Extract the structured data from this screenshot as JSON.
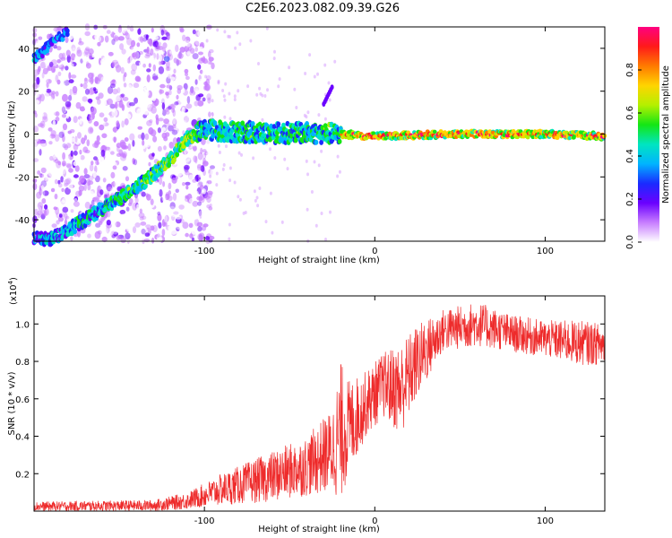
{
  "title": "C2E6.2023.082.09.39.G26",
  "chart_data": [
    {
      "type": "heatmap",
      "xlabel": "Height of straight line (km)",
      "ylabel": "Frequency (Hz)",
      "xlim": [
        -200,
        135
      ],
      "ylim": [
        -50,
        50
      ],
      "xticks": [
        -100,
        0,
        100
      ],
      "yticks": [
        -40,
        -20,
        0,
        20,
        40
      ],
      "colorbar": {
        "label": "Normalized spectral amplitude",
        "range": [
          0,
          1
        ],
        "ticks": [
          0.0,
          0.2,
          0.4,
          0.6,
          0.8
        ],
        "colors": [
          "#ffffff",
          "#c77dff",
          "#6a00ff",
          "#1a2bff",
          "#00b4ff",
          "#00e5c0",
          "#14e614",
          "#b4f000",
          "#ffd400",
          "#ff7a00",
          "#ff1a1a",
          "#ff0080"
        ]
      },
      "ridge": [
        {
          "x": -190,
          "y": -49
        },
        {
          "x": -170,
          "y": -40
        },
        {
          "x": -150,
          "y": -30
        },
        {
          "x": -135,
          "y": -22
        },
        {
          "x": -120,
          "y": -12
        },
        {
          "x": -110,
          "y": -2
        },
        {
          "x": -100,
          "y": 2
        },
        {
          "x": -80,
          "y": 1
        },
        {
          "x": -60,
          "y": 0.5
        },
        {
          "x": -40,
          "y": 0.5
        },
        {
          "x": -20,
          "y": 0
        },
        {
          "x": 0,
          "y": -1
        },
        {
          "x": 50,
          "y": 0
        },
        {
          "x": 100,
          "y": 0
        },
        {
          "x": 135,
          "y": -1
        }
      ],
      "upper_branch": [
        {
          "x": -200,
          "y": 35
        },
        {
          "x": -190,
          "y": 42
        },
        {
          "x": -180,
          "y": 48
        }
      ],
      "anomaly": [
        {
          "x": -30,
          "y": 14
        },
        {
          "x": -25,
          "y": 22
        }
      ]
    },
    {
      "type": "line",
      "xlabel": "Height of straight line (km)",
      "ylabel": "SNR (10 * v/v)",
      "y_scale_label": "(x10",
      "y_scale_exp": "4",
      "xlim": [
        -200,
        135
      ],
      "ylim": [
        0,
        1.15
      ],
      "xticks": [
        -100,
        0,
        100
      ],
      "yticks": [
        0.2,
        0.4,
        0.6,
        0.8,
        1.0
      ],
      "color": "#ee2b2b",
      "envelope": [
        {
          "x": -200,
          "low": 0.0,
          "high": 0.05
        },
        {
          "x": -130,
          "low": 0.0,
          "high": 0.06
        },
        {
          "x": -110,
          "low": 0.01,
          "high": 0.1
        },
        {
          "x": -90,
          "low": 0.03,
          "high": 0.2
        },
        {
          "x": -60,
          "low": 0.05,
          "high": 0.32
        },
        {
          "x": -40,
          "low": 0.08,
          "high": 0.4
        },
        {
          "x": -25,
          "low": 0.1,
          "high": 0.55
        },
        {
          "x": -20,
          "low": 0.05,
          "high": 0.8
        },
        {
          "x": -15,
          "low": 0.2,
          "high": 0.7
        },
        {
          "x": -5,
          "low": 0.4,
          "high": 0.75
        },
        {
          "x": 5,
          "low": 0.5,
          "high": 0.85
        },
        {
          "x": 15,
          "low": 0.4,
          "high": 0.9
        },
        {
          "x": 25,
          "low": 0.6,
          "high": 1.0
        },
        {
          "x": 40,
          "low": 0.85,
          "high": 1.08
        },
        {
          "x": 60,
          "low": 0.88,
          "high": 1.12
        },
        {
          "x": 80,
          "low": 0.85,
          "high": 1.05
        },
        {
          "x": 100,
          "low": 0.82,
          "high": 1.02
        },
        {
          "x": 120,
          "low": 0.78,
          "high": 1.02
        },
        {
          "x": 135,
          "low": 0.78,
          "high": 1.0
        }
      ]
    }
  ]
}
